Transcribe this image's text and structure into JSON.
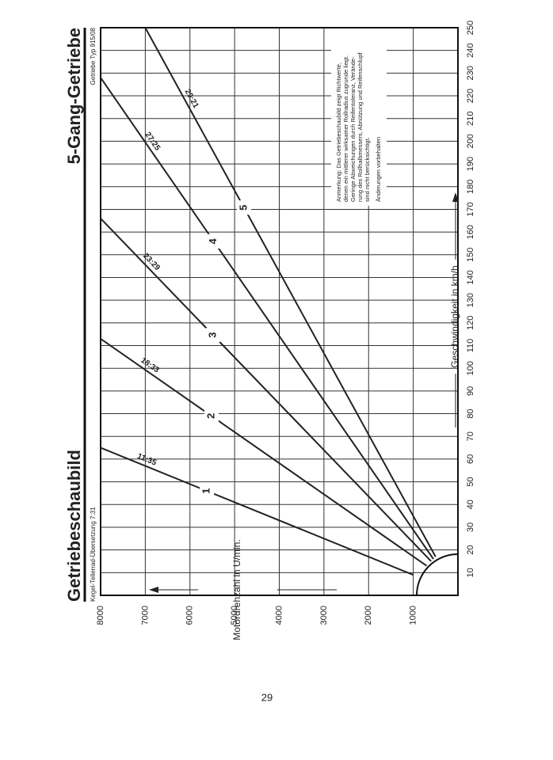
{
  "header": {
    "title": "Getriebeschaubild",
    "model": "5-Gang-Getriebe",
    "subtitle": "Kegel-Tellerrad-Übersetzung 7:31",
    "type": "Getriebe Typ  915/08"
  },
  "chart_data": {
    "type": "line",
    "x_label": "Geschwindigkeit in km/h",
    "y_label": "Motordrehzahl in U/min.",
    "xlim": [
      0,
      250
    ],
    "ylim": [
      0,
      8000
    ],
    "xticks": [
      10,
      20,
      30,
      40,
      50,
      60,
      70,
      80,
      90,
      100,
      110,
      120,
      130,
      140,
      150,
      160,
      170,
      180,
      190,
      200,
      210,
      220,
      230,
      240,
      250
    ],
    "yticks": [
      1000,
      2000,
      3000,
      4000,
      5000,
      6000,
      7000,
      8000
    ],
    "grid": true,
    "series": [
      {
        "name": "11:35",
        "label": "1",
        "color": "#222222",
        "x": [
          9,
          65
        ],
        "values": [
          1000,
          8000
        ]
      },
      {
        "name": "18:33",
        "label": "2",
        "color": "#222222",
        "x": [
          13,
          113
        ],
        "values": [
          700,
          8000
        ]
      },
      {
        "name": "23:29",
        "label": "3",
        "color": "#222222",
        "x": [
          15,
          166
        ],
        "values": [
          600,
          8000
        ]
      },
      {
        "name": "27:25",
        "label": "4",
        "color": "#222222",
        "x": [
          16,
          228
        ],
        "values": [
          550,
          8000
        ]
      },
      {
        "name": "29:21",
        "label": "5",
        "color": "#222222",
        "x": [
          17,
          250
        ],
        "values": [
          500,
          7000
        ]
      }
    ]
  },
  "note": {
    "lines": [
      "Anmerkung:  Das  Getriebeschaubild  zeigt  Richtwerte,",
      "denen ein mittlerer wirksamer Rollradius zugrunde liegt.",
      "Geringe Abweichungen durch Reifentoleranz, Verände-",
      "rung des Rollhalbmessers, Abnützung und Reifenschlupf",
      "sind nicht berücksichtigt."
    ],
    "footer": "Änderungen vorbehalten"
  },
  "page_number": "29"
}
